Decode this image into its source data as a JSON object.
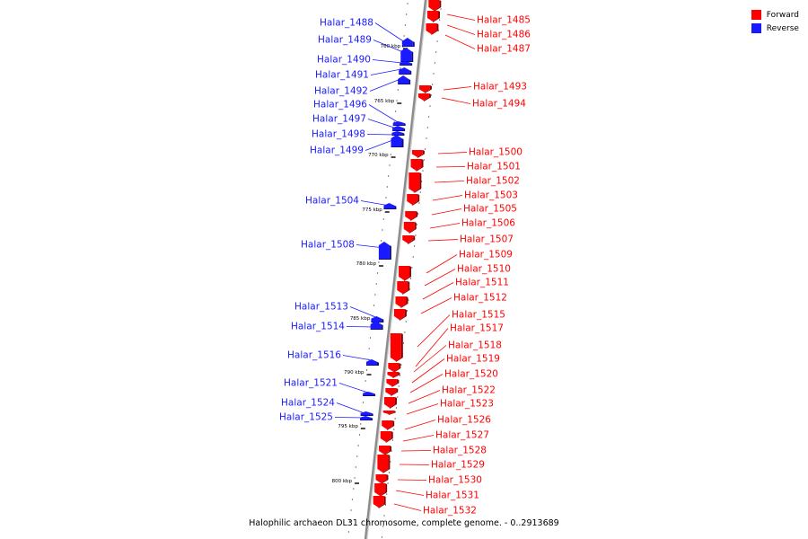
{
  "legend": [
    {
      "label": "Forward",
      "color": "#ff0000"
    },
    {
      "label": "Reverse",
      "color": "#1a1aff"
    }
  ],
  "caption": "Halophilic archaeon DL31 chromosome, complete genome. - 0..2913689",
  "colors": {
    "forward": "#ff0000",
    "reverse": "#1a1aff",
    "backbone": "#8c8c8c"
  },
  "ticks": [
    "760 kbp",
    "765 kbp",
    "770 kbp",
    "775 kbp",
    "780 kbp",
    "785 kbp",
    "790 kbp",
    "795 kbp",
    "800 kbp"
  ],
  "forward_genes": [
    "Halar_1485",
    "Halar_1486",
    "Halar_1487",
    "Halar_1493",
    "Halar_1494",
    "Halar_1500",
    "Halar_1501",
    "Halar_1502",
    "Halar_1503",
    "Halar_1505",
    "Halar_1506",
    "Halar_1507",
    "Halar_1509",
    "Halar_1510",
    "Halar_1511",
    "Halar_1512",
    "Halar_1515",
    "Halar_1517",
    "Halar_1518",
    "Halar_1519",
    "Halar_1520",
    "Halar_1522",
    "Halar_1523",
    "Halar_1526",
    "Halar_1527",
    "Halar_1528",
    "Halar_1529",
    "Halar_1530",
    "Halar_1531",
    "Halar_1532"
  ],
  "reverse_genes": [
    "Halar_1488",
    "Halar_1489",
    "Halar_1490",
    "Halar_1491",
    "Halar_1492",
    "Halar_1496",
    "Halar_1497",
    "Halar_1498",
    "Halar_1499",
    "Halar_1504",
    "Halar_1508",
    "Halar_1513",
    "Halar_1514",
    "Halar_1516",
    "Halar_1521",
    "Halar_1524",
    "Halar_1525"
  ]
}
